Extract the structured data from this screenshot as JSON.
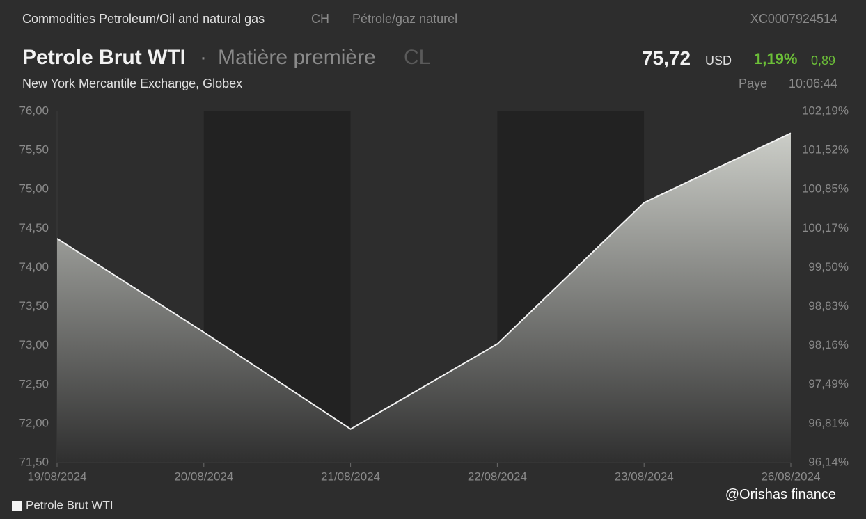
{
  "header": {
    "breadcrumb": "Commodities Petroleum/Oil and natural gas",
    "code": "CH",
    "category": "Pétrole/gaz naturel",
    "isin": "XC0007924514",
    "name": "Petrole Brut WTI",
    "separator": "·",
    "kind": "Matière première",
    "symbol": "CL",
    "price": "75,72",
    "currency": "USD",
    "change_pct": "1,19%",
    "change": "0,89",
    "exchange": "New York Mercantile Exchange, Globex",
    "status": "Paye",
    "time": "10:06:44"
  },
  "watermark": "@Orishas finance",
  "chart_data": {
    "type": "line",
    "categories": [
      "19/08/2024",
      "20/08/2024",
      "21/08/2024",
      "22/08/2024",
      "23/08/2024",
      "26/08/2024"
    ],
    "series": [
      {
        "name": "Petrole Brut WTI",
        "color": "#f2f2f2",
        "values": [
          74.37,
          73.17,
          71.93,
          73.02,
          74.83,
          75.72
        ]
      }
    ],
    "ylim": [
      71.5,
      76
    ],
    "yticks": [
      {
        "value": 71.5,
        "label": "71,50"
      },
      {
        "value": 72,
        "label": "72,00"
      },
      {
        "value": 72.5,
        "label": "72,50"
      },
      {
        "value": 73,
        "label": "73,00"
      },
      {
        "value": 73.5,
        "label": "73,50"
      },
      {
        "value": 74,
        "label": "74,00"
      },
      {
        "value": 74.5,
        "label": "74,50"
      },
      {
        "value": 75,
        "label": "75,00"
      },
      {
        "value": 75.5,
        "label": "75,50"
      },
      {
        "value": 76,
        "label": "76,00"
      }
    ],
    "y2lim": [
      96.14,
      102.19
    ],
    "y2ticks": [
      {
        "value": 96.14,
        "label": "96,14%"
      },
      {
        "value": 96.81,
        "label": "96,81%"
      },
      {
        "value": 97.49,
        "label": "97,49%"
      },
      {
        "value": 98.16,
        "label": "98,16%"
      },
      {
        "value": 98.83,
        "label": "98,83%"
      },
      {
        "value": 99.5,
        "label": "99,50%"
      },
      {
        "value": 100.17,
        "label": "100,17%"
      },
      {
        "value": 100.85,
        "label": "100,85%"
      },
      {
        "value": 101.52,
        "label": "101,52%"
      },
      {
        "value": 102.19,
        "label": "102,19%"
      }
    ],
    "grid": false,
    "legend": "bottom-left"
  }
}
